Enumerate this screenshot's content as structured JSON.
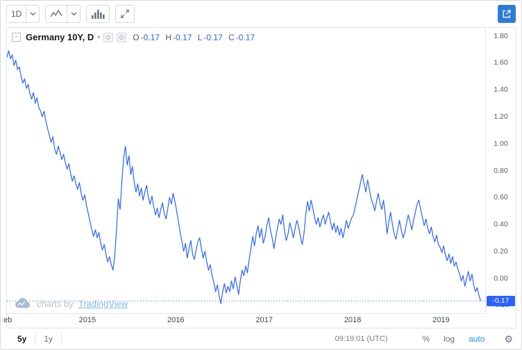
{
  "toolbar": {
    "interval": "1D"
  },
  "icons": {
    "collapse_glyph": "−",
    "caret_glyph": "▾",
    "gear_glyph": "⚙"
  },
  "legend": {
    "symbol": "Germany 10Y, D",
    "ohlc_labels": [
      "O",
      "H",
      "L",
      "C"
    ],
    "open": "-0.17",
    "high": "-0.17",
    "low": "-0.17",
    "close": "-0.17"
  },
  "watermark": {
    "prefix": "charts by",
    "brand": "TradingView"
  },
  "bottom": {
    "range_5y": "5y",
    "range_1y": "1y",
    "clock": "09:19:01 (UTC)",
    "percent": "%",
    "log": "log",
    "auto": "auto"
  },
  "colors": {
    "line": "#2962ff",
    "badge_bg": "#2962ff",
    "accent": "#2196f3"
  },
  "chart_data": {
    "type": "line",
    "title": "Germany 10Y, D",
    "symbol": "Germany 10Y",
    "interval": "D",
    "last_price": -0.17,
    "last_price_label": "-0.17",
    "ohlc": {
      "open": -0.17,
      "high": -0.17,
      "low": -0.17,
      "close": -0.17
    },
    "xlim": [
      2014.09,
      2019.5
    ],
    "ylim": [
      -0.26,
      1.86
    ],
    "y_ticks": [
      1.8,
      1.6,
      1.4,
      1.2,
      1.0,
      0.8,
      0.6,
      0.4,
      0.2,
      0.0,
      -0.2
    ],
    "x_ticks": [
      {
        "label": "eb",
        "x": 2014.1
      },
      {
        "label": "2015",
        "x": 2015.0
      },
      {
        "label": "2016",
        "x": 2016.0
      },
      {
        "label": "2017",
        "x": 2017.0
      },
      {
        "label": "2018",
        "x": 2018.0
      },
      {
        "label": "2019",
        "x": 2019.0
      }
    ],
    "grid": false,
    "legend_position": "top-left",
    "series": [
      [
        2014.09,
        1.64
      ],
      [
        2014.11,
        1.69
      ],
      [
        2014.13,
        1.63
      ],
      [
        2014.15,
        1.66
      ],
      [
        2014.17,
        1.58
      ],
      [
        2014.19,
        1.62
      ],
      [
        2014.21,
        1.55
      ],
      [
        2014.23,
        1.57
      ],
      [
        2014.25,
        1.5
      ],
      [
        2014.27,
        1.45
      ],
      [
        2014.29,
        1.48
      ],
      [
        2014.31,
        1.41
      ],
      [
        2014.33,
        1.44
      ],
      [
        2014.35,
        1.37
      ],
      [
        2014.37,
        1.33
      ],
      [
        2014.39,
        1.38
      ],
      [
        2014.41,
        1.3
      ],
      [
        2014.43,
        1.34
      ],
      [
        2014.45,
        1.27
      ],
      [
        2014.47,
        1.24
      ],
      [
        2014.49,
        1.2
      ],
      [
        2014.51,
        1.24
      ],
      [
        2014.53,
        1.17
      ],
      [
        2014.55,
        1.11
      ],
      [
        2014.57,
        1.06
      ],
      [
        2014.59,
        1.01
      ],
      [
        2014.61,
        1.05
      ],
      [
        2014.63,
        0.96
      ],
      [
        2014.65,
        0.92
      ],
      [
        2014.67,
        0.98
      ],
      [
        2014.69,
        0.94
      ],
      [
        2014.71,
        0.88
      ],
      [
        2014.73,
        0.92
      ],
      [
        2014.75,
        0.86
      ],
      [
        2014.77,
        0.81
      ],
      [
        2014.79,
        0.85
      ],
      [
        2014.81,
        0.78
      ],
      [
        2014.83,
        0.72
      ],
      [
        2014.85,
        0.76
      ],
      [
        2014.87,
        0.7
      ],
      [
        2014.89,
        0.66
      ],
      [
        2014.91,
        0.71
      ],
      [
        2014.93,
        0.63
      ],
      [
        2014.95,
        0.58
      ],
      [
        2014.97,
        0.62
      ],
      [
        2014.99,
        0.54
      ],
      [
        2015.01,
        0.48
      ],
      [
        2015.03,
        0.42
      ],
      [
        2015.05,
        0.36
      ],
      [
        2015.07,
        0.31
      ],
      [
        2015.09,
        0.36
      ],
      [
        2015.11,
        0.3
      ],
      [
        2015.13,
        0.34
      ],
      [
        2015.15,
        0.26
      ],
      [
        2015.17,
        0.21
      ],
      [
        2015.19,
        0.25
      ],
      [
        2015.21,
        0.18
      ],
      [
        2015.23,
        0.12
      ],
      [
        2015.25,
        0.16
      ],
      [
        2015.27,
        0.1
      ],
      [
        2015.29,
        0.06
      ],
      [
        2015.31,
        0.17
      ],
      [
        2015.33,
        0.37
      ],
      [
        2015.35,
        0.59
      ],
      [
        2015.37,
        0.51
      ],
      [
        2015.39,
        0.72
      ],
      [
        2015.41,
        0.89
      ],
      [
        2015.43,
        0.98
      ],
      [
        2015.45,
        0.84
      ],
      [
        2015.47,
        0.91
      ],
      [
        2015.49,
        0.77
      ],
      [
        2015.51,
        0.83
      ],
      [
        2015.53,
        0.71
      ],
      [
        2015.55,
        0.64
      ],
      [
        2015.57,
        0.7
      ],
      [
        2015.59,
        0.61
      ],
      [
        2015.61,
        0.67
      ],
      [
        2015.63,
        0.58
      ],
      [
        2015.65,
        0.64
      ],
      [
        2015.67,
        0.69
      ],
      [
        2015.69,
        0.6
      ],
      [
        2015.71,
        0.55
      ],
      [
        2015.73,
        0.61
      ],
      [
        2015.75,
        0.53
      ],
      [
        2015.77,
        0.47
      ],
      [
        2015.79,
        0.52
      ],
      [
        2015.81,
        0.45
      ],
      [
        2015.83,
        0.51
      ],
      [
        2015.85,
        0.56
      ],
      [
        2015.87,
        0.48
      ],
      [
        2015.89,
        0.44
      ],
      [
        2015.91,
        0.52
      ],
      [
        2015.93,
        0.6
      ],
      [
        2015.95,
        0.55
      ],
      [
        2015.97,
        0.63
      ],
      [
        2015.99,
        0.57
      ],
      [
        2016.01,
        0.5
      ],
      [
        2016.03,
        0.42
      ],
      [
        2016.05,
        0.34
      ],
      [
        2016.07,
        0.27
      ],
      [
        2016.09,
        0.2
      ],
      [
        2016.11,
        0.26
      ],
      [
        2016.13,
        0.15
      ],
      [
        2016.15,
        0.22
      ],
      [
        2016.17,
        0.28
      ],
      [
        2016.19,
        0.18
      ],
      [
        2016.21,
        0.14
      ],
      [
        2016.23,
        0.21
      ],
      [
        2016.25,
        0.27
      ],
      [
        2016.27,
        0.3
      ],
      [
        2016.29,
        0.22
      ],
      [
        2016.31,
        0.15
      ],
      [
        2016.33,
        0.2
      ],
      [
        2016.35,
        0.12
      ],
      [
        2016.37,
        0.06
      ],
      [
        2016.39,
        0.1
      ],
      [
        2016.41,
        0.02
      ],
      [
        2016.43,
        -0.03
      ],
      [
        2016.45,
        -0.1
      ],
      [
        2016.47,
        -0.05
      ],
      [
        2016.49,
        -0.13
      ],
      [
        2016.51,
        -0.19
      ],
      [
        2016.53,
        -0.1
      ],
      [
        2016.55,
        -0.04
      ],
      [
        2016.57,
        -0.11
      ],
      [
        2016.59,
        -0.06
      ],
      [
        2016.61,
        -0.1
      ],
      [
        2016.63,
        -0.02
      ],
      [
        2016.65,
        -0.08
      ],
      [
        2016.67,
        0.01
      ],
      [
        2016.69,
        -0.05
      ],
      [
        2016.71,
        -0.12
      ],
      [
        2016.73,
        -0.02
      ],
      [
        2016.75,
        0.06
      ],
      [
        2016.77,
        0.02
      ],
      [
        2016.79,
        0.09
      ],
      [
        2016.81,
        0.04
      ],
      [
        2016.83,
        0.14
      ],
      [
        2016.85,
        0.22
      ],
      [
        2016.87,
        0.31
      ],
      [
        2016.89,
        0.24
      ],
      [
        2016.91,
        0.33
      ],
      [
        2016.93,
        0.39
      ],
      [
        2016.95,
        0.3
      ],
      [
        2016.97,
        0.37
      ],
      [
        2016.99,
        0.26
      ],
      [
        2017.01,
        0.31
      ],
      [
        2017.03,
        0.39
      ],
      [
        2017.05,
        0.45
      ],
      [
        2017.07,
        0.36
      ],
      [
        2017.09,
        0.3
      ],
      [
        2017.11,
        0.22
      ],
      [
        2017.13,
        0.3
      ],
      [
        2017.15,
        0.37
      ],
      [
        2017.17,
        0.44
      ],
      [
        2017.19,
        0.4
      ],
      [
        2017.21,
        0.47
      ],
      [
        2017.23,
        0.35
      ],
      [
        2017.25,
        0.28
      ],
      [
        2017.27,
        0.33
      ],
      [
        2017.29,
        0.41
      ],
      [
        2017.31,
        0.36
      ],
      [
        2017.33,
        0.3
      ],
      [
        2017.35,
        0.37
      ],
      [
        2017.37,
        0.43
      ],
      [
        2017.39,
        0.38
      ],
      [
        2017.41,
        0.31
      ],
      [
        2017.43,
        0.25
      ],
      [
        2017.45,
        0.33
      ],
      [
        2017.47,
        0.47
      ],
      [
        2017.49,
        0.57
      ],
      [
        2017.51,
        0.5
      ],
      [
        2017.53,
        0.58
      ],
      [
        2017.55,
        0.52
      ],
      [
        2017.57,
        0.45
      ],
      [
        2017.59,
        0.4
      ],
      [
        2017.61,
        0.45
      ],
      [
        2017.63,
        0.38
      ],
      [
        2017.65,
        0.43
      ],
      [
        2017.67,
        0.47
      ],
      [
        2017.69,
        0.4
      ],
      [
        2017.71,
        0.45
      ],
      [
        2017.73,
        0.49
      ],
      [
        2017.75,
        0.42
      ],
      [
        2017.77,
        0.36
      ],
      [
        2017.79,
        0.41
      ],
      [
        2017.81,
        0.34
      ],
      [
        2017.83,
        0.39
      ],
      [
        2017.85,
        0.32
      ],
      [
        2017.87,
        0.37
      ],
      [
        2017.89,
        0.3
      ],
      [
        2017.91,
        0.36
      ],
      [
        2017.93,
        0.43
      ],
      [
        2017.95,
        0.37
      ],
      [
        2017.97,
        0.41
      ],
      [
        2017.99,
        0.45
      ],
      [
        2018.01,
        0.47
      ],
      [
        2018.03,
        0.53
      ],
      [
        2018.05,
        0.59
      ],
      [
        2018.07,
        0.65
      ],
      [
        2018.09,
        0.71
      ],
      [
        2018.11,
        0.77
      ],
      [
        2018.13,
        0.7
      ],
      [
        2018.15,
        0.64
      ],
      [
        2018.17,
        0.73
      ],
      [
        2018.19,
        0.66
      ],
      [
        2018.21,
        0.59
      ],
      [
        2018.23,
        0.55
      ],
      [
        2018.25,
        0.5
      ],
      [
        2018.27,
        0.57
      ],
      [
        2018.29,
        0.63
      ],
      [
        2018.31,
        0.56
      ],
      [
        2018.33,
        0.51
      ],
      [
        2018.35,
        0.58
      ],
      [
        2018.37,
        0.47
      ],
      [
        2018.39,
        0.33
      ],
      [
        2018.41,
        0.42
      ],
      [
        2018.43,
        0.49
      ],
      [
        2018.45,
        0.4
      ],
      [
        2018.47,
        0.33
      ],
      [
        2018.49,
        0.29
      ],
      [
        2018.51,
        0.36
      ],
      [
        2018.53,
        0.43
      ],
      [
        2018.55,
        0.36
      ],
      [
        2018.57,
        0.3
      ],
      [
        2018.59,
        0.34
      ],
      [
        2018.61,
        0.41
      ],
      [
        2018.63,
        0.47
      ],
      [
        2018.65,
        0.42
      ],
      [
        2018.67,
        0.36
      ],
      [
        2018.69,
        0.43
      ],
      [
        2018.71,
        0.49
      ],
      [
        2018.73,
        0.55
      ],
      [
        2018.75,
        0.58
      ],
      [
        2018.77,
        0.51
      ],
      [
        2018.79,
        0.45
      ],
      [
        2018.81,
        0.39
      ],
      [
        2018.83,
        0.44
      ],
      [
        2018.85,
        0.37
      ],
      [
        2018.87,
        0.33
      ],
      [
        2018.89,
        0.38
      ],
      [
        2018.91,
        0.31
      ],
      [
        2018.93,
        0.27
      ],
      [
        2018.95,
        0.32
      ],
      [
        2018.97,
        0.25
      ],
      [
        2018.99,
        0.23
      ],
      [
        2019.01,
        0.19
      ],
      [
        2019.03,
        0.24
      ],
      [
        2019.05,
        0.17
      ],
      [
        2019.07,
        0.13
      ],
      [
        2019.09,
        0.18
      ],
      [
        2019.11,
        0.11
      ],
      [
        2019.13,
        0.16
      ],
      [
        2019.15,
        0.09
      ],
      [
        2019.17,
        0.12
      ],
      [
        2019.19,
        0.07
      ],
      [
        2019.21,
        0.03
      ],
      [
        2019.23,
        -0.02
      ],
      [
        2019.25,
        0.02
      ],
      [
        2019.27,
        -0.06
      ],
      [
        2019.29,
        0.0
      ],
      [
        2019.31,
        0.05
      ],
      [
        2019.33,
        -0.02
      ],
      [
        2019.35,
        0.03
      ],
      [
        2019.37,
        -0.05
      ],
      [
        2019.39,
        -0.1
      ],
      [
        2019.41,
        -0.07
      ],
      [
        2019.43,
        -0.13
      ],
      [
        2019.45,
        -0.17
      ]
    ]
  }
}
